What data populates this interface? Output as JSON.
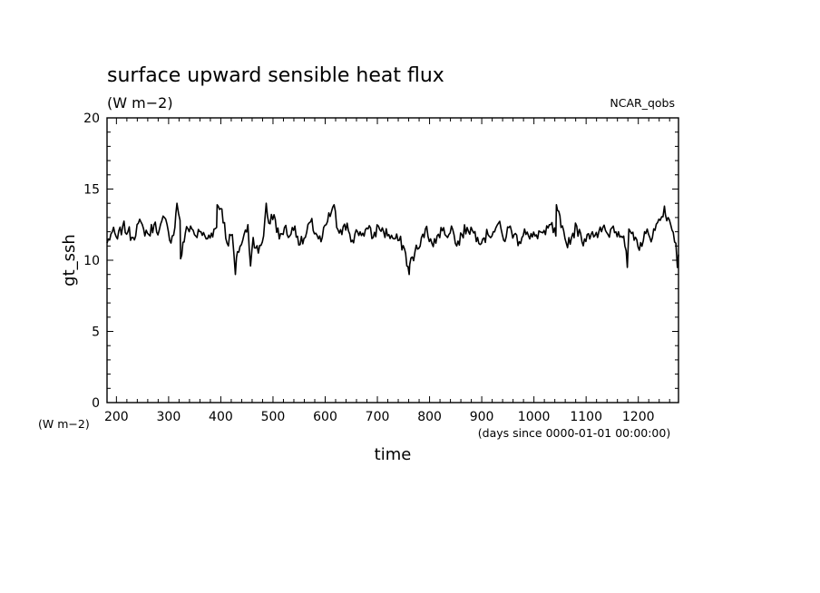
{
  "chart_data": {
    "type": "line",
    "title": "surface upward sensible heat flux",
    "units": "(W m−2)",
    "source_label": "NCAR_qobs",
    "xlabel": "time",
    "x_units": "(days since 0000-01-01 00:00:00)",
    "ylabel": "gt_ssh",
    "y_units": "(W m−2)",
    "xlim": [
      182,
      1277
    ],
    "ylim": [
      0,
      20
    ],
    "xticks": [
      200,
      300,
      400,
      500,
      600,
      700,
      800,
      900,
      1000,
      1100,
      1200
    ],
    "yticks": [
      0,
      5,
      10,
      15,
      20
    ],
    "grid": false,
    "legend": "none",
    "series": [
      {
        "color": "#000000",
        "x": [
          182,
          192,
          202,
          212,
          222,
          232,
          242,
          252,
          262,
          272,
          282,
          292,
          302,
          312,
          322,
          332,
          342,
          352,
          362,
          372,
          382,
          392,
          402,
          412,
          422,
          432,
          442,
          452,
          462,
          472,
          482,
          492,
          502,
          512,
          522,
          532,
          542,
          552,
          562,
          572,
          582,
          592,
          602,
          612,
          622,
          632,
          642,
          652,
          662,
          672,
          682,
          692,
          702,
          712,
          722,
          732,
          742,
          752,
          762,
          772,
          782,
          792,
          802,
          812,
          822,
          832,
          842,
          852,
          862,
          872,
          882,
          892,
          902,
          912,
          922,
          932,
          942,
          952,
          962,
          972,
          982,
          992,
          1002,
          1012,
          1022,
          1032,
          1042,
          1052,
          1062,
          1072,
          1082,
          1092,
          1102,
          1112,
          1122,
          1132,
          1142,
          1152,
          1162,
          1172,
          1182,
          1192,
          1202,
          1212,
          1222,
          1232,
          1242,
          1252,
          1262,
          1272,
          1277
        ],
        "y": [
          11.2,
          12.0,
          11.5,
          12.4,
          12.0,
          11.6,
          12.6,
          12.2,
          11.8,
          12.5,
          12.1,
          13.0,
          11.4,
          12.3,
          12.8,
          11.9,
          12.4,
          11.7,
          12.0,
          11.5,
          11.9,
          12.3,
          13.6,
          11.2,
          11.8,
          10.6,
          11.4,
          12.5,
          11.6,
          10.5,
          11.7,
          12.6,
          13.2,
          11.5,
          12.3,
          11.7,
          12.4,
          11.1,
          11.6,
          12.7,
          11.9,
          11.3,
          12.5,
          13.4,
          12.3,
          11.8,
          12.6,
          11.4,
          12.0,
          11.9,
          12.2,
          11.6,
          12.4,
          12.0,
          11.8,
          11.5,
          11.4,
          10.8,
          9.7,
          10.6,
          11.0,
          12.2,
          11.5,
          11.2,
          12.3,
          11.7,
          12.4,
          11.0,
          11.8,
          12.3,
          12.1,
          11.6,
          11.5,
          11.8,
          12.0,
          12.6,
          11.4,
          12.3,
          11.8,
          11.3,
          12.2,
          11.5,
          11.7,
          12.0,
          11.8,
          12.5,
          11.7,
          12.3,
          11.2,
          11.6,
          12.4,
          11.3,
          11.8,
          12.0,
          11.6,
          12.3,
          11.8,
          12.4,
          12.0,
          11.7,
          12.2,
          11.4,
          10.7,
          12.0,
          11.6,
          12.1,
          12.8,
          13.2,
          12.5,
          11.2,
          10.4
        ]
      }
    ],
    "peaks": [
      {
        "x": 316,
        "y": 14.0
      },
      {
        "x": 393,
        "y": 13.9
      },
      {
        "x": 487,
        "y": 14.0
      },
      {
        "x": 617,
        "y": 13.9
      },
      {
        "x": 1043,
        "y": 13.9
      },
      {
        "x": 1250,
        "y": 13.8
      }
    ],
    "troughs": [
      {
        "x": 323,
        "y": 10.1
      },
      {
        "x": 428,
        "y": 9.0
      },
      {
        "x": 457,
        "y": 9.6
      },
      {
        "x": 761,
        "y": 9.0
      },
      {
        "x": 1179,
        "y": 9.5
      },
      {
        "x": 1275,
        "y": 9.5
      }
    ]
  }
}
